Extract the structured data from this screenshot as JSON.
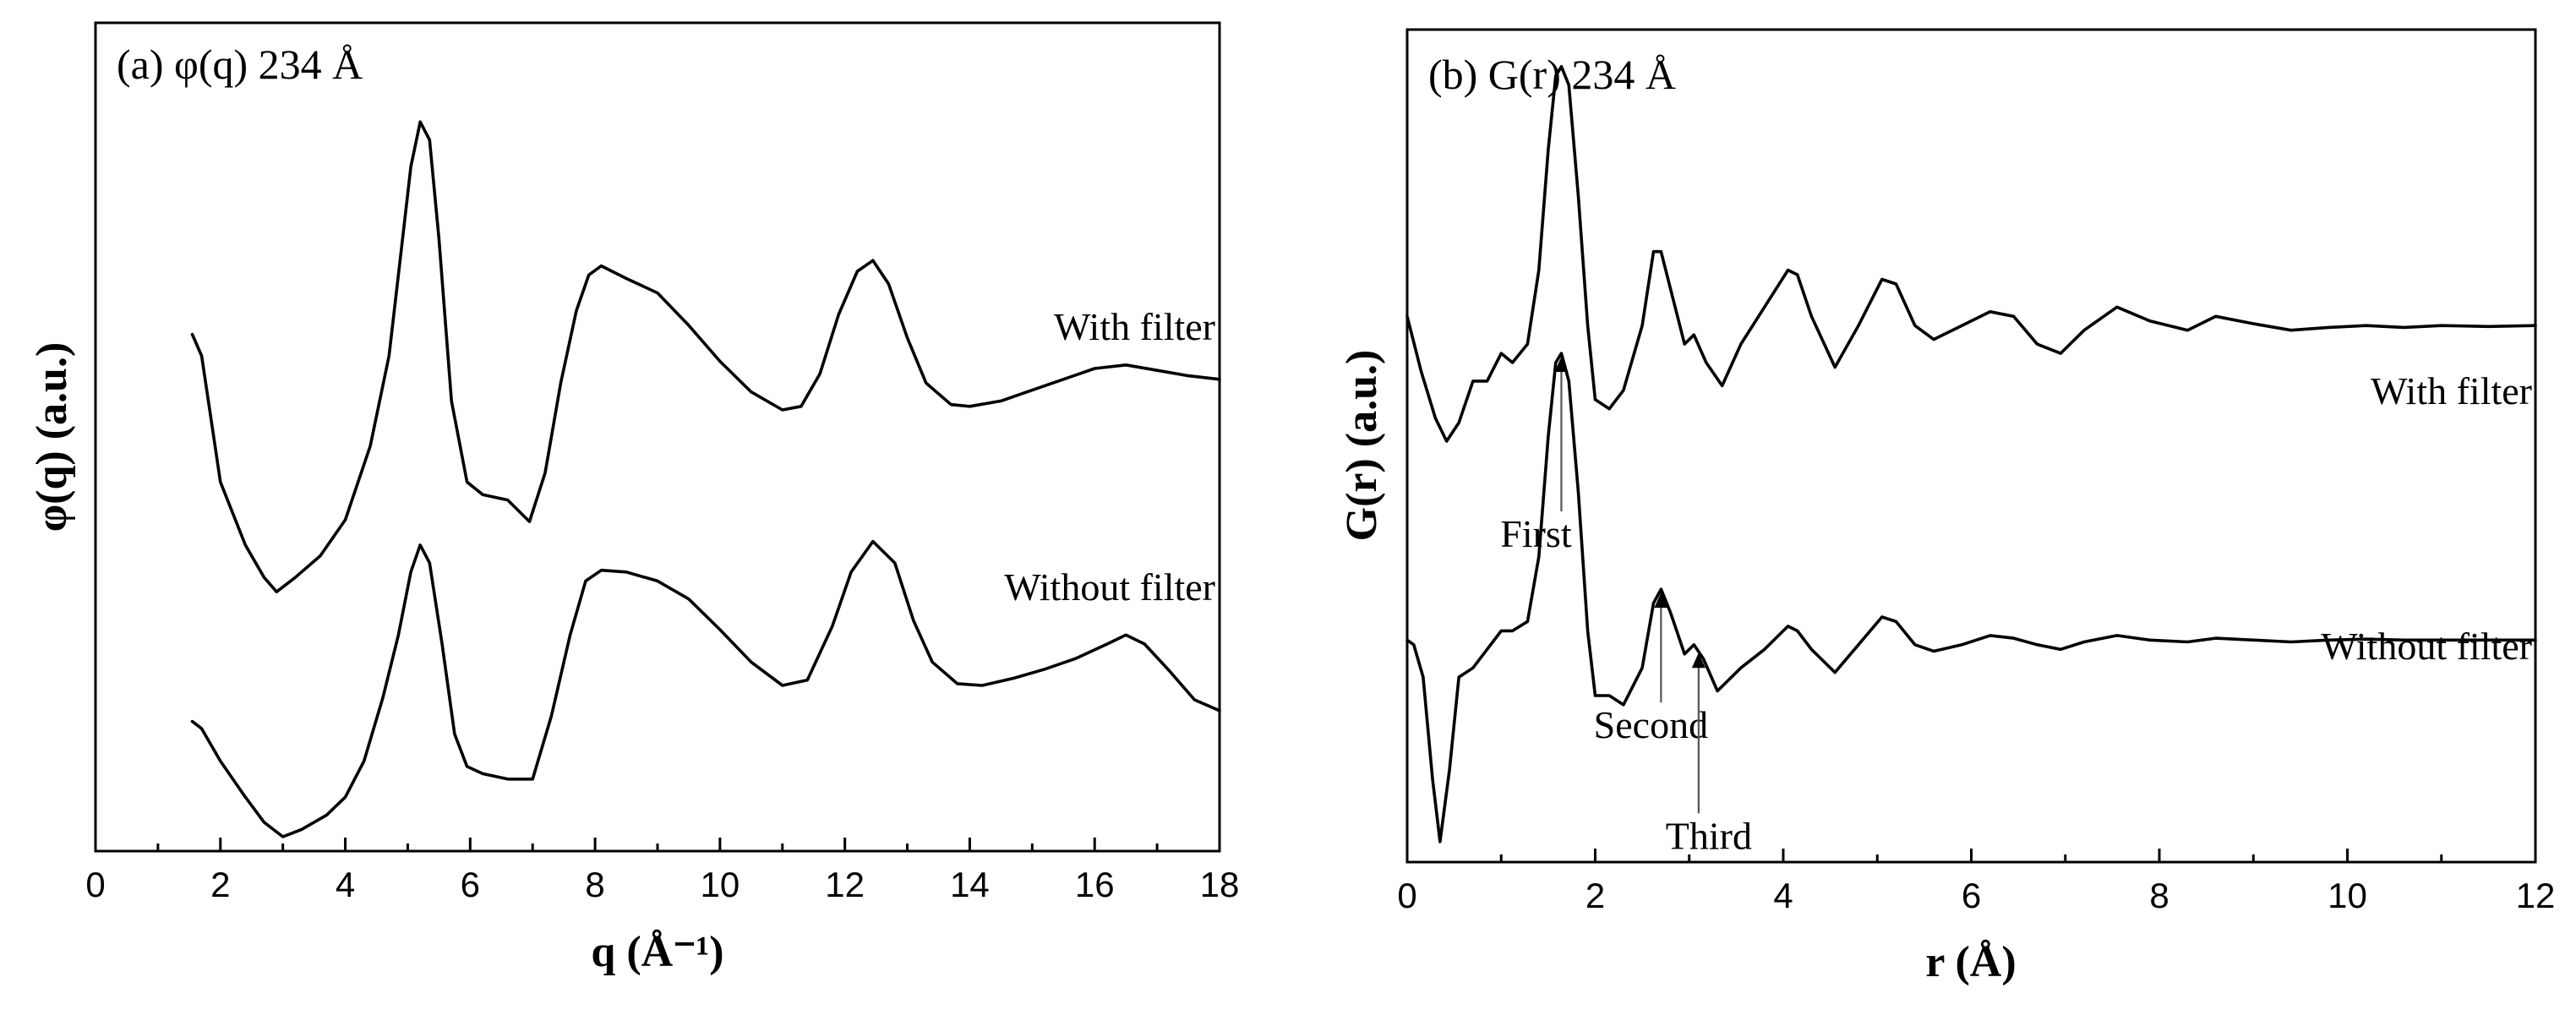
{
  "chart_data": [
    {
      "type": "line",
      "title": "(a) φ(q) 234 Å",
      "xlabel": "q (Å⁻¹)",
      "ylabel": "φ(q) (a.u.)",
      "xlim": [
        0,
        18
      ],
      "ylim": [
        -1.5,
        3.1
      ],
      "xticks": [
        0,
        2,
        4,
        6,
        8,
        10,
        12,
        14,
        16,
        18
      ],
      "xtick_labels": [
        "0",
        "2",
        "4",
        "6",
        "8",
        "10",
        "12",
        "14",
        "16",
        "18"
      ],
      "yticks": [],
      "series": [
        {
          "name": "With filter",
          "x": [
            1.55,
            1.7,
            2.0,
            2.4,
            2.7,
            2.9,
            3.2,
            3.6,
            4.0,
            4.4,
            4.7,
            4.9,
            5.05,
            5.2,
            5.35,
            5.5,
            5.7,
            5.95,
            6.2,
            6.6,
            6.95,
            7.2,
            7.45,
            7.7,
            7.9,
            8.1,
            8.5,
            9.0,
            9.5,
            10.0,
            10.5,
            11.0,
            11.3,
            11.6,
            11.9,
            12.2,
            12.45,
            12.7,
            13.0,
            13.3,
            13.7,
            14.0,
            14.5,
            15.0,
            15.5,
            16.0,
            16.5,
            17.0,
            17.5,
            18.0
          ],
          "y": [
            1.37,
            1.25,
            0.55,
            0.2,
            0.02,
            -0.06,
            0.02,
            0.14,
            0.34,
            0.75,
            1.25,
            1.85,
            2.3,
            2.55,
            2.45,
            1.9,
            1.0,
            0.55,
            0.48,
            0.45,
            0.33,
            0.6,
            1.1,
            1.5,
            1.7,
            1.75,
            1.68,
            1.6,
            1.42,
            1.22,
            1.05,
            0.95,
            0.97,
            1.15,
            1.48,
            1.72,
            1.78,
            1.65,
            1.35,
            1.1,
            0.98,
            0.97,
            1.0,
            1.06,
            1.12,
            1.18,
            1.2,
            1.17,
            1.14,
            1.12
          ]
        },
        {
          "name": "Without filter",
          "x": [
            1.55,
            1.7,
            2.0,
            2.4,
            2.7,
            3.0,
            3.3,
            3.7,
            4.0,
            4.3,
            4.6,
            4.85,
            5.05,
            5.2,
            5.35,
            5.55,
            5.75,
            5.95,
            6.2,
            6.6,
            7.0,
            7.3,
            7.6,
            7.85,
            8.1,
            8.5,
            9.0,
            9.5,
            10.0,
            10.5,
            11.0,
            11.4,
            11.8,
            12.1,
            12.45,
            12.8,
            13.1,
            13.4,
            13.8,
            14.2,
            14.7,
            15.2,
            15.7,
            16.2,
            16.5,
            16.8,
            17.2,
            17.6,
            18.0
          ],
          "y": [
            -0.78,
            -0.82,
            -1.0,
            -1.2,
            -1.34,
            -1.42,
            -1.38,
            -1.3,
            -1.2,
            -1.0,
            -0.65,
            -0.3,
            0.05,
            0.2,
            0.1,
            -0.35,
            -0.85,
            -1.03,
            -1.07,
            -1.1,
            -1.1,
            -0.75,
            -0.3,
            0.0,
            0.06,
            0.05,
            0.0,
            -0.1,
            -0.27,
            -0.45,
            -0.58,
            -0.55,
            -0.25,
            0.05,
            0.22,
            0.1,
            -0.22,
            -0.45,
            -0.57,
            -0.58,
            -0.54,
            -0.49,
            -0.43,
            -0.35,
            -0.3,
            -0.35,
            -0.5,
            -0.66,
            -0.72
          ]
        }
      ],
      "annotations": []
    },
    {
      "type": "line",
      "title": "(b) G(r) 234 Å",
      "xlabel": "r (Å)",
      "ylabel": "G(r) (a.u.)",
      "xlim": [
        0,
        12
      ],
      "ylim": [
        -2.0,
        7.0
      ],
      "xticks": [
        0,
        2,
        4,
        6,
        8,
        10,
        12
      ],
      "xtick_labels": [
        "0",
        "2",
        "4",
        "6",
        "8",
        "10",
        "12"
      ],
      "yticks": [],
      "series": [
        {
          "name": "With filter",
          "x": [
            0.0,
            0.15,
            0.3,
            0.42,
            0.55,
            0.7,
            0.85,
            1.0,
            1.12,
            1.28,
            1.4,
            1.5,
            1.58,
            1.64,
            1.72,
            1.82,
            1.92,
            2.0,
            2.15,
            2.3,
            2.5,
            2.62,
            2.7,
            2.8,
            2.95,
            3.05,
            3.18,
            3.35,
            3.55,
            3.8,
            4.05,
            4.15,
            4.3,
            4.55,
            4.8,
            5.05,
            5.2,
            5.4,
            5.6,
            5.9,
            6.2,
            6.45,
            6.7,
            6.95,
            7.2,
            7.55,
            7.9,
            8.3,
            8.6,
            9.0,
            9.4,
            9.8,
            10.2,
            10.6,
            11.0,
            11.5,
            12.0
          ],
          "y": [
            3.9,
            3.3,
            2.8,
            2.55,
            2.75,
            3.2,
            3.2,
            3.5,
            3.4,
            3.6,
            4.4,
            5.7,
            6.5,
            6.6,
            6.4,
            5.2,
            3.8,
            3.0,
            2.9,
            3.1,
            3.8,
            4.6,
            4.6,
            4.2,
            3.6,
            3.7,
            3.4,
            3.15,
            3.6,
            4.0,
            4.4,
            4.35,
            3.9,
            3.35,
            3.8,
            4.3,
            4.25,
            3.8,
            3.65,
            3.8,
            3.95,
            3.9,
            3.6,
            3.5,
            3.75,
            4.0,
            3.85,
            3.75,
            3.9,
            3.82,
            3.75,
            3.78,
            3.8,
            3.78,
            3.8,
            3.79,
            3.8
          ]
        },
        {
          "name": "Without filter",
          "x": [
            0.0,
            0.07,
            0.17,
            0.27,
            0.35,
            0.45,
            0.55,
            0.7,
            0.85,
            1.0,
            1.12,
            1.28,
            1.4,
            1.5,
            1.58,
            1.64,
            1.72,
            1.82,
            1.92,
            2.0,
            2.15,
            2.3,
            2.5,
            2.62,
            2.7,
            2.8,
            2.95,
            3.05,
            3.15,
            3.3,
            3.55,
            3.8,
            4.05,
            4.15,
            4.3,
            4.55,
            4.8,
            5.05,
            5.2,
            5.4,
            5.6,
            5.9,
            6.2,
            6.45,
            6.7,
            6.95,
            7.2,
            7.55,
            7.9,
            8.3,
            8.6,
            9.0,
            9.4,
            9.8,
            10.2,
            10.6,
            11.0,
            11.5,
            12.0
          ],
          "y": [
            0.4,
            0.35,
            0.0,
            -1.1,
            -1.78,
            -1.0,
            0.0,
            0.1,
            0.3,
            0.5,
            0.5,
            0.6,
            1.3,
            2.6,
            3.4,
            3.5,
            3.2,
            2.0,
            0.5,
            -0.2,
            -0.2,
            -0.3,
            0.1,
            0.8,
            0.95,
            0.7,
            0.25,
            0.35,
            0.2,
            -0.15,
            0.1,
            0.3,
            0.55,
            0.5,
            0.3,
            0.05,
            0.35,
            0.65,
            0.6,
            0.35,
            0.28,
            0.35,
            0.45,
            0.42,
            0.35,
            0.3,
            0.38,
            0.45,
            0.4,
            0.38,
            0.42,
            0.4,
            0.38,
            0.4,
            0.41,
            0.4,
            0.4,
            0.4,
            0.4
          ]
        }
      ],
      "annotations": [
        {
          "text": "First",
          "x": 1.64,
          "y": 3.5
        },
        {
          "text": "Second",
          "x": 2.7,
          "y": 0.95
        },
        {
          "text": "Third",
          "x": 3.1,
          "y": 0.3
        }
      ]
    }
  ]
}
